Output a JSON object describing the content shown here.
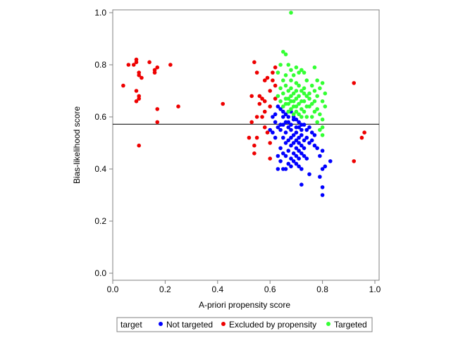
{
  "chart_data": {
    "type": "scatter",
    "xlabel": "A-priori propensity score",
    "ylabel": "Bias-likelihood score",
    "xlim": [
      0,
      1
    ],
    "ylim": [
      0,
      1
    ],
    "x_ticks": [
      "0.0",
      "0.2",
      "0.4",
      "0.6",
      "0.8",
      "1.0"
    ],
    "y_ticks": [
      "0.0",
      "0.2",
      "0.4",
      "0.6",
      "0.8",
      "1.0"
    ],
    "grid": false,
    "reference_line_y": 0.572,
    "legend": {
      "title": "target",
      "placement": "bottom",
      "entries": [
        "Not targeted",
        "Excluded by propensity",
        "Targeted"
      ]
    },
    "series": [
      {
        "name": "Not targeted",
        "color": "#0000ff",
        "points": [
          [
            0.63,
            0.64
          ],
          [
            0.64,
            0.63
          ],
          [
            0.65,
            0.62
          ],
          [
            0.66,
            0.61
          ],
          [
            0.67,
            0.6
          ],
          [
            0.68,
            0.62
          ],
          [
            0.69,
            0.6
          ],
          [
            0.7,
            0.59
          ],
          [
            0.71,
            0.58
          ],
          [
            0.72,
            0.57
          ],
          [
            0.62,
            0.58
          ],
          [
            0.63,
            0.56
          ],
          [
            0.64,
            0.55
          ],
          [
            0.65,
            0.57
          ],
          [
            0.66,
            0.54
          ],
          [
            0.67,
            0.56
          ],
          [
            0.68,
            0.55
          ],
          [
            0.69,
            0.53
          ],
          [
            0.7,
            0.54
          ],
          [
            0.71,
            0.52
          ],
          [
            0.72,
            0.53
          ],
          [
            0.73,
            0.51
          ],
          [
            0.74,
            0.52
          ],
          [
            0.75,
            0.5
          ],
          [
            0.76,
            0.51
          ],
          [
            0.77,
            0.49
          ],
          [
            0.78,
            0.48
          ],
          [
            0.65,
            0.52
          ],
          [
            0.66,
            0.5
          ],
          [
            0.67,
            0.51
          ],
          [
            0.68,
            0.49
          ],
          [
            0.69,
            0.5
          ],
          [
            0.7,
            0.48
          ],
          [
            0.71,
            0.47
          ],
          [
            0.72,
            0.46
          ],
          [
            0.73,
            0.45
          ],
          [
            0.74,
            0.44
          ],
          [
            0.64,
            0.48
          ],
          [
            0.65,
            0.46
          ],
          [
            0.66,
            0.45
          ],
          [
            0.67,
            0.47
          ],
          [
            0.68,
            0.44
          ],
          [
            0.69,
            0.43
          ],
          [
            0.7,
            0.42
          ],
          [
            0.71,
            0.41
          ],
          [
            0.72,
            0.4
          ],
          [
            0.66,
            0.4
          ],
          [
            0.67,
            0.42
          ],
          [
            0.68,
            0.41
          ],
          [
            0.64,
            0.43
          ],
          [
            0.63,
            0.45
          ],
          [
            0.6,
            0.55
          ],
          [
            0.61,
            0.54
          ],
          [
            0.62,
            0.52
          ],
          [
            0.61,
            0.6
          ],
          [
            0.62,
            0.61
          ],
          [
            0.64,
            0.57
          ],
          [
            0.66,
            0.58
          ],
          [
            0.68,
            0.57
          ],
          [
            0.7,
            0.56
          ],
          [
            0.73,
            0.57
          ],
          [
            0.75,
            0.56
          ],
          [
            0.76,
            0.54
          ],
          [
            0.74,
            0.55
          ],
          [
            0.77,
            0.53
          ],
          [
            0.79,
            0.45
          ],
          [
            0.8,
            0.47
          ],
          [
            0.81,
            0.41
          ],
          [
            0.8,
            0.4
          ],
          [
            0.83,
            0.43
          ],
          [
            0.79,
            0.37
          ],
          [
            0.8,
            0.33
          ],
          [
            0.8,
            0.3
          ],
          [
            0.72,
            0.34
          ],
          [
            0.75,
            0.38
          ],
          [
            0.65,
            0.4
          ],
          [
            0.63,
            0.4
          ],
          [
            0.7,
            0.45
          ],
          [
            0.71,
            0.44
          ],
          [
            0.69,
            0.46
          ],
          [
            0.65,
            0.6
          ],
          [
            0.67,
            0.58
          ],
          [
            0.69,
            0.59
          ],
          [
            0.71,
            0.56
          ],
          [
            0.72,
            0.55
          ],
          [
            0.68,
            0.52
          ],
          [
            0.7,
            0.51
          ],
          [
            0.71,
            0.5
          ],
          [
            0.72,
            0.49
          ],
          [
            0.73,
            0.48
          ]
        ]
      },
      {
        "name": "Excluded by propensity",
        "color": "#ee0000",
        "points": [
          [
            0.04,
            0.72
          ],
          [
            0.06,
            0.8
          ],
          [
            0.08,
            0.8
          ],
          [
            0.09,
            0.82
          ],
          [
            0.09,
            0.81
          ],
          [
            0.1,
            0.77
          ],
          [
            0.1,
            0.76
          ],
          [
            0.11,
            0.75
          ],
          [
            0.14,
            0.81
          ],
          [
            0.16,
            0.78
          ],
          [
            0.17,
            0.79
          ],
          [
            0.16,
            0.77
          ],
          [
            0.22,
            0.8
          ],
          [
            0.09,
            0.7
          ],
          [
            0.1,
            0.67
          ],
          [
            0.1,
            0.68
          ],
          [
            0.09,
            0.66
          ],
          [
            0.17,
            0.63
          ],
          [
            0.17,
            0.58
          ],
          [
            0.1,
            0.49
          ],
          [
            0.25,
            0.64
          ],
          [
            0.42,
            0.65
          ],
          [
            0.52,
            0.52
          ],
          [
            0.53,
            0.68
          ],
          [
            0.53,
            0.58
          ],
          [
            0.54,
            0.49
          ],
          [
            0.54,
            0.46
          ],
          [
            0.55,
            0.77
          ],
          [
            0.56,
            0.68
          ],
          [
            0.56,
            0.65
          ],
          [
            0.57,
            0.67
          ],
          [
            0.57,
            0.6
          ],
          [
            0.58,
            0.62
          ],
          [
            0.58,
            0.74
          ],
          [
            0.58,
            0.66
          ],
          [
            0.59,
            0.75
          ],
          [
            0.6,
            0.64
          ],
          [
            0.6,
            0.7
          ],
          [
            0.61,
            0.77
          ],
          [
            0.61,
            0.74
          ],
          [
            0.62,
            0.79
          ],
          [
            0.62,
            0.72
          ],
          [
            0.62,
            0.67
          ],
          [
            0.59,
            0.54
          ],
          [
            0.6,
            0.5
          ],
          [
            0.6,
            0.44
          ],
          [
            0.55,
            0.52
          ],
          [
            0.58,
            0.56
          ],
          [
            0.55,
            0.6
          ],
          [
            0.92,
            0.73
          ],
          [
            0.92,
            0.43
          ],
          [
            0.95,
            0.52
          ],
          [
            0.96,
            0.54
          ],
          [
            0.54,
            0.81
          ]
        ]
      },
      {
        "name": "Targeted",
        "color": "#33ff33",
        "points": [
          [
            0.68,
            1.0
          ],
          [
            0.65,
            0.85
          ],
          [
            0.66,
            0.84
          ],
          [
            0.64,
            0.8
          ],
          [
            0.67,
            0.8
          ],
          [
            0.68,
            0.78
          ],
          [
            0.7,
            0.79
          ],
          [
            0.72,
            0.78
          ],
          [
            0.77,
            0.79
          ],
          [
            0.63,
            0.77
          ],
          [
            0.66,
            0.76
          ],
          [
            0.69,
            0.76
          ],
          [
            0.71,
            0.77
          ],
          [
            0.73,
            0.77
          ],
          [
            0.65,
            0.74
          ],
          [
            0.68,
            0.74
          ],
          [
            0.7,
            0.73
          ],
          [
            0.74,
            0.74
          ],
          [
            0.78,
            0.74
          ],
          [
            0.8,
            0.73
          ],
          [
            0.64,
            0.71
          ],
          [
            0.66,
            0.72
          ],
          [
            0.68,
            0.71
          ],
          [
            0.71,
            0.72
          ],
          [
            0.73,
            0.71
          ],
          [
            0.76,
            0.72
          ],
          [
            0.79,
            0.71
          ],
          [
            0.65,
            0.69
          ],
          [
            0.67,
            0.7
          ],
          [
            0.69,
            0.69
          ],
          [
            0.72,
            0.7
          ],
          [
            0.75,
            0.69
          ],
          [
            0.77,
            0.7
          ],
          [
            0.81,
            0.69
          ],
          [
            0.63,
            0.68
          ],
          [
            0.66,
            0.67
          ],
          [
            0.68,
            0.68
          ],
          [
            0.7,
            0.67
          ],
          [
            0.74,
            0.68
          ],
          [
            0.78,
            0.68
          ],
          [
            0.64,
            0.66
          ],
          [
            0.67,
            0.65
          ],
          [
            0.69,
            0.66
          ],
          [
            0.71,
            0.65
          ],
          [
            0.73,
            0.66
          ],
          [
            0.76,
            0.65
          ],
          [
            0.8,
            0.66
          ],
          [
            0.65,
            0.64
          ],
          [
            0.68,
            0.63
          ],
          [
            0.7,
            0.64
          ],
          [
            0.72,
            0.63
          ],
          [
            0.75,
            0.64
          ],
          [
            0.78,
            0.63
          ],
          [
            0.81,
            0.64
          ],
          [
            0.67,
            0.62
          ],
          [
            0.69,
            0.61
          ],
          [
            0.73,
            0.62
          ],
          [
            0.77,
            0.62
          ],
          [
            0.79,
            0.61
          ],
          [
            0.74,
            0.6
          ],
          [
            0.76,
            0.6
          ],
          [
            0.8,
            0.59
          ],
          [
            0.78,
            0.58
          ],
          [
            0.8,
            0.56
          ],
          [
            0.79,
            0.55
          ],
          [
            0.8,
            0.53
          ],
          [
            0.72,
            0.6
          ],
          [
            0.71,
            0.61
          ],
          [
            0.7,
            0.62
          ],
          [
            0.69,
            0.64
          ],
          [
            0.71,
            0.68
          ],
          [
            0.73,
            0.69
          ],
          [
            0.75,
            0.67
          ],
          [
            0.66,
            0.65
          ],
          [
            0.67,
            0.67
          ],
          [
            0.68,
            0.66
          ],
          [
            0.72,
            0.66
          ],
          [
            0.74,
            0.64
          ],
          [
            0.77,
            0.66
          ],
          [
            0.7,
            0.7
          ]
        ]
      }
    ]
  }
}
